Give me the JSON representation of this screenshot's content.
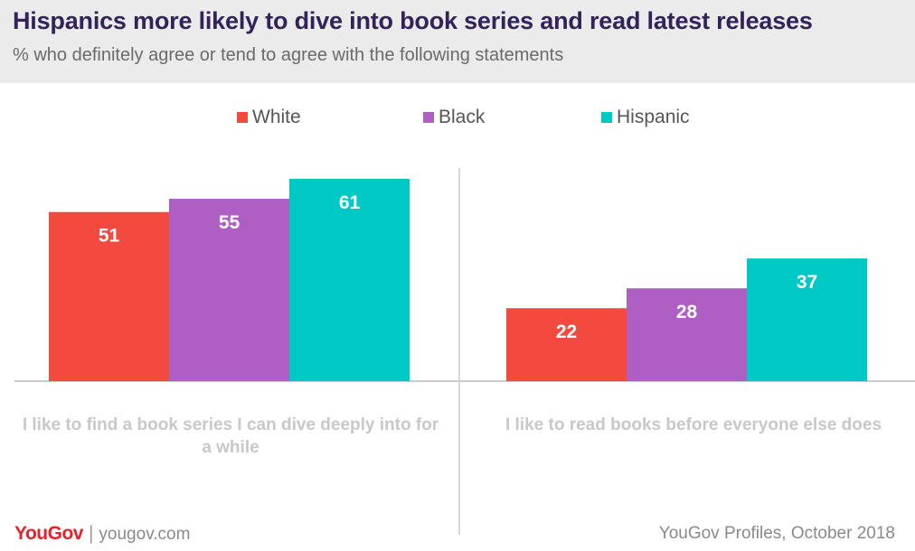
{
  "header": {
    "title": "Hispanics more likely to dive into book series and read latest releases",
    "subtitle": "% who definitely agree or tend to agree with the following statements"
  },
  "chart_data": {
    "type": "bar",
    "title": "Hispanics more likely to dive into book series and read latest releases",
    "subtitle": "% who definitely agree or tend to agree with the following statements",
    "categories": [
      "I like to find a book series I can dive deeply into for a while",
      "I like to read books before everyone else does"
    ],
    "series": [
      {
        "name": "White",
        "color": "#f24a3f",
        "values": [
          51,
          22
        ]
      },
      {
        "name": "Black",
        "color": "#ae5fc4",
        "values": [
          55,
          28
        ]
      },
      {
        "name": "Hispanic",
        "color": "#00c8c4",
        "values": [
          61,
          37
        ]
      }
    ],
    "ylim": [
      0,
      61
    ],
    "legend_position": "top",
    "grid": false
  },
  "footer": {
    "logo": "YouGov",
    "separator": "|",
    "site": "yougov.com",
    "source": "YouGov Profiles, October 2018"
  }
}
